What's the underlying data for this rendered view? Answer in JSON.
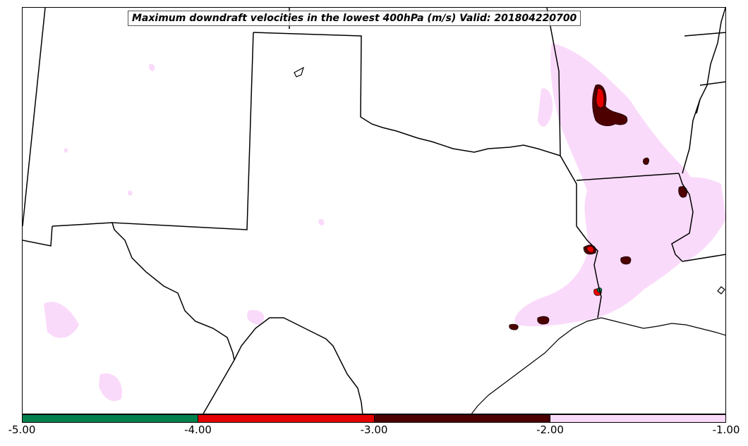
{
  "title": "Maximum downdraft velocities in the lowest 400hPa (m/s) Valid: 201804220700",
  "colorbar": {
    "colors": [
      "#00804d",
      "#e60000",
      "#4d0000",
      "#fadafa"
    ],
    "ticks": [
      "-5.00",
      "-4.00",
      "-3.00",
      "-2.00",
      "-1.00"
    ]
  }
}
